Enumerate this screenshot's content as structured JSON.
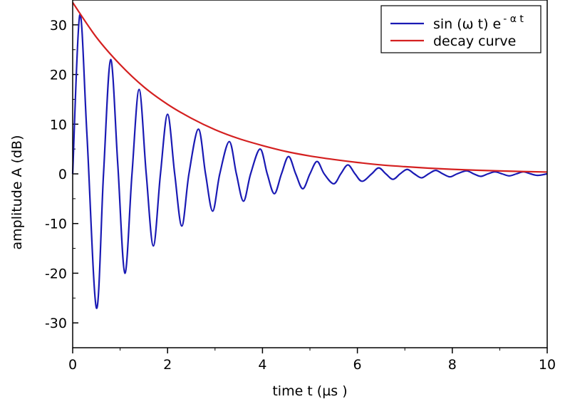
{
  "chart_data": {
    "type": "line",
    "title": "",
    "xlabel": "time t (µs )",
    "ylabel": "amplitude  A (dB)",
    "xlim": [
      0,
      10
    ],
    "ylim": [
      -35,
      35
    ],
    "x_ticks": [
      "0",
      "2",
      "4",
      "6",
      "8",
      "10"
    ],
    "y_ticks": [
      "30",
      "20",
      "10",
      "0",
      "-10",
      "-20",
      "-30"
    ],
    "grid": false,
    "legend_position": "top-right",
    "series": [
      {
        "name": "sin (ω t) e",
        "superscript": "- α t",
        "color": "#1a1ab4",
        "x": [
          0.0,
          0.15,
          0.3,
          0.5,
          0.65,
          0.8,
          0.95,
          1.1,
          1.25,
          1.4,
          1.55,
          1.7,
          1.85,
          2.0,
          2.15,
          2.3,
          2.45,
          2.65,
          2.8,
          2.95,
          3.1,
          3.3,
          3.45,
          3.6,
          3.75,
          3.95,
          4.1,
          4.25,
          4.4,
          4.55,
          4.7,
          4.85,
          5.0,
          5.15,
          5.3,
          5.5,
          5.65,
          5.8,
          5.95,
          6.1,
          6.3,
          6.45,
          6.6,
          6.75,
          6.9,
          7.05,
          7.2,
          7.35,
          7.5,
          7.65,
          7.8,
          7.95,
          8.1,
          8.3,
          8.45,
          8.6,
          8.75,
          8.9,
          9.05,
          9.2,
          9.35,
          9.5,
          9.65,
          9.8,
          10.0
        ],
        "y": [
          0.0,
          32.0,
          8.0,
          -27.0,
          0.0,
          23.0,
          2.0,
          -20.0,
          0.0,
          17.0,
          0.0,
          -14.5,
          0.0,
          12.0,
          0.0,
          -10.5,
          0.0,
          9.0,
          0.0,
          -7.5,
          0.0,
          6.5,
          0.0,
          -5.5,
          0.0,
          5.0,
          0.0,
          -4.0,
          0.0,
          3.5,
          0.0,
          -3.0,
          0.0,
          2.5,
          0.0,
          -2.0,
          0.0,
          1.8,
          0.0,
          -1.5,
          0.0,
          1.2,
          0.0,
          -1.1,
          0.0,
          0.9,
          0.0,
          -0.8,
          0.0,
          0.7,
          0.0,
          -0.6,
          0.0,
          0.6,
          0.0,
          -0.5,
          0.0,
          0.4,
          0.0,
          -0.4,
          0.0,
          0.4,
          0.0,
          -0.3,
          0.0
        ]
      },
      {
        "name": "decay curve",
        "color": "#d42020",
        "x": [
          0,
          0.5,
          1,
          1.5,
          2,
          2.5,
          3,
          3.5,
          4,
          4.5,
          5,
          5.5,
          6,
          6.5,
          7,
          7.5,
          8,
          8.5,
          9,
          9.5,
          10
        ],
        "y": [
          34.5,
          27.5,
          22.0,
          17.5,
          14.0,
          11.2,
          8.9,
          7.1,
          5.7,
          4.5,
          3.6,
          2.9,
          2.3,
          1.8,
          1.45,
          1.15,
          0.92,
          0.74,
          0.59,
          0.47,
          0.37
        ]
      }
    ]
  }
}
